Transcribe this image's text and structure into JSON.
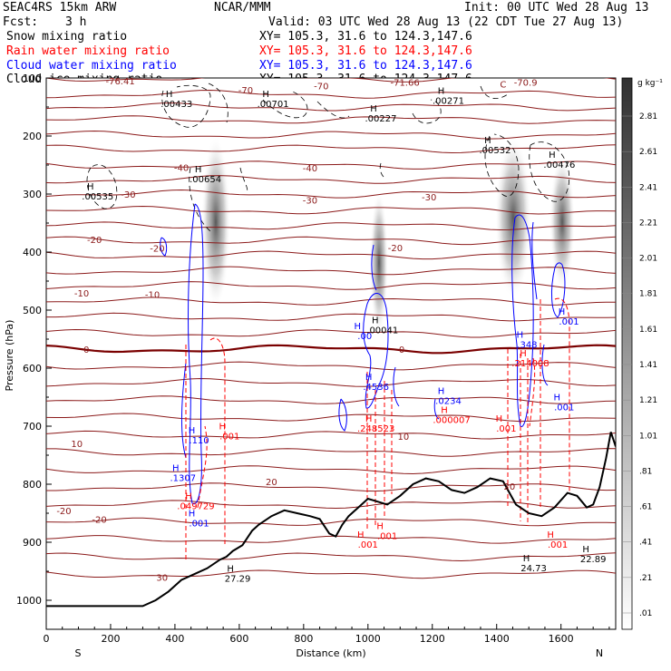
{
  "header": {
    "model": "SEAC4RS 15km ARW",
    "org": "NCAR/MMM",
    "init": "Init: 00 UTC Wed 28 Aug 13",
    "fcst_label": "Fcst:",
    "fcst_value": "3 h",
    "valid": "Valid: 03 UTC Wed 28 Aug 13 (22 CDT Tue 27 Aug 13)",
    "fields": [
      {
        "name": "Snow mixing ratio",
        "color": "#000000",
        "xy": "XY= 105.3, 31.6 to 124.3,147.6"
      },
      {
        "name": "Rain water mixing ratio",
        "color": "#ff0000",
        "xy": "XY= 105.3, 31.6 to 124.3,147.6"
      },
      {
        "name": "Cloud water mixing ratio",
        "color": "#0000ff",
        "xy": "XY= 105.3, 31.6 to 124.3,147.6"
      },
      {
        "name": "Cloud ice mixing ratio",
        "color": "#000000",
        "xy": "XY= 105.3, 31.6 to 124.3,147.6"
      }
    ]
  },
  "colors": {
    "temperature": "#8b1a1a",
    "freezing": "#7a0000",
    "rain": "#ff0000",
    "cloud_water": "#0000ff",
    "ice": "#000000",
    "terrain": "#000000"
  },
  "chart_data": {
    "type": "cross-section",
    "xlabel": "Distance (km)",
    "ylabel": "Pressure (hPa)",
    "x_left_label": "S",
    "x_right_label": "N",
    "xlim": [
      0,
      1770
    ],
    "ylim": [
      1050,
      100
    ],
    "x_ticks": [
      0,
      200,
      400,
      600,
      800,
      1000,
      1200,
      1400,
      1600
    ],
    "y_ticks": [
      100,
      200,
      300,
      400,
      500,
      600,
      700,
      800,
      900,
      1000
    ],
    "colorbar": {
      "unit": "g kg⁻¹",
      "labels": [
        "2.81",
        "2.61",
        "2.41",
        "2.21",
        "2.01",
        "1.81",
        "1.61",
        "1.41",
        "1.21",
        "1.01",
        ".81",
        ".61",
        ".41",
        ".21",
        ".01"
      ]
    },
    "temperature_labels": [
      {
        "text": "-76.41",
        "x": 230,
        "p": 105
      },
      {
        "text": "-70",
        "x": 620,
        "p": 120
      },
      {
        "text": "-70",
        "x": 855,
        "p": 113
      },
      {
        "text": "-71.66",
        "x": 1115,
        "p": 107
      },
      {
        "text": "C",
        "x": 1420,
        "p": 110
      },
      {
        "text": "-70.9",
        "x": 1490,
        "p": 107
      },
      {
        "text": "-40",
        "x": 420,
        "p": 254
      },
      {
        "text": "-40",
        "x": 820,
        "p": 255
      },
      {
        "text": "-30",
        "x": 255,
        "p": 300
      },
      {
        "text": "-30",
        "x": 820,
        "p": 310
      },
      {
        "text": "-30",
        "x": 1190,
        "p": 305
      },
      {
        "text": "-20",
        "x": 150,
        "p": 378
      },
      {
        "text": "-20",
        "x": 345,
        "p": 393
      },
      {
        "text": "-20",
        "x": 1085,
        "p": 392
      },
      {
        "text": "-10",
        "x": 110,
        "p": 470
      },
      {
        "text": "-10",
        "x": 330,
        "p": 473
      },
      {
        "text": "0",
        "x": 125,
        "p": 567
      },
      {
        "text": "0",
        "x": 1105,
        "p": 567
      },
      {
        "text": "10",
        "x": 95,
        "p": 730
      },
      {
        "text": "10",
        "x": 1110,
        "p": 717
      },
      {
        "text": "20",
        "x": 700,
        "p": 795
      },
      {
        "text": "20",
        "x": 1440,
        "p": 803
      },
      {
        "text": "-20",
        "x": 55,
        "p": 845
      },
      {
        "text": "-20",
        "x": 165,
        "p": 860
      },
      {
        "text": "30",
        "x": 360,
        "p": 960
      }
    ],
    "maxima": [
      {
        "text": ".00433",
        "x": 405,
        "p": 145,
        "color": "#000000"
      },
      {
        "text": ".00701",
        "x": 705,
        "p": 145,
        "color": "#000000"
      },
      {
        "text": ".00227",
        "x": 1040,
        "p": 170,
        "color": "#000000"
      },
      {
        "text": ".00271",
        "x": 1250,
        "p": 140,
        "color": "#000000"
      },
      {
        "text": ".00532",
        "x": 1395,
        "p": 225,
        "color": "#000000"
      },
      {
        "text": ".00476",
        "x": 1595,
        "p": 250,
        "color": "#000000"
      },
      {
        "text": ".00654",
        "x": 495,
        "p": 275,
        "color": "#000000"
      },
      {
        "text": ".00535",
        "x": 160,
        "p": 305,
        "color": "#000000"
      },
      {
        "text": ".00041",
        "x": 1045,
        "p": 535,
        "color": "#000000"
      },
      {
        "text": ".00",
        "x": 990,
        "p": 545,
        "color": "#0000ff"
      },
      {
        "text": ".348",
        "x": 1495,
        "p": 560,
        "color": "#0000ff"
      },
      {
        "text": ".214008",
        "x": 1505,
        "p": 592,
        "color": "#ff0000"
      },
      {
        "text": ".001",
        "x": 1625,
        "p": 520,
        "color": "#0000ff"
      },
      {
        "text": ".4536",
        "x": 1025,
        "p": 633,
        "color": "#0000ff"
      },
      {
        "text": ".0234",
        "x": 1250,
        "p": 657,
        "color": "#0000ff"
      },
      {
        "text": ".000007",
        "x": 1260,
        "p": 690,
        "color": "#ff0000"
      },
      {
        "text": ".248523",
        "x": 1025,
        "p": 705,
        "color": "#ff0000"
      },
      {
        "text": ".001",
        "x": 1610,
        "p": 668,
        "color": "#0000ff"
      },
      {
        "text": ".001",
        "x": 1430,
        "p": 705,
        "color": "#ff0000"
      },
      {
        "text": ".110",
        "x": 475,
        "p": 725,
        "color": "#0000ff"
      },
      {
        "text": ".001",
        "x": 570,
        "p": 718,
        "color": "#ff0000"
      },
      {
        "text": ".1307",
        "x": 425,
        "p": 790,
        "color": "#0000ff"
      },
      {
        "text": ".049729",
        "x": 465,
        "p": 838,
        "color": "#ff0000"
      },
      {
        "text": ".001",
        "x": 475,
        "p": 868,
        "color": "#0000ff"
      },
      {
        "text": ".001",
        "x": 1000,
        "p": 905,
        "color": "#ff0000"
      },
      {
        "text": ".001",
        "x": 1060,
        "p": 890,
        "color": "#ff0000"
      },
      {
        "text": ".001",
        "x": 1590,
        "p": 905,
        "color": "#ff0000"
      },
      {
        "text": "24.73",
        "x": 1515,
        "p": 945,
        "color": "#000000"
      },
      {
        "text": "22.89",
        "x": 1700,
        "p": 930,
        "color": "#000000"
      },
      {
        "text": "27.29",
        "x": 595,
        "p": 963,
        "color": "#000000"
      }
    ],
    "terrain_km_hpa": [
      [
        0,
        1010
      ],
      [
        300,
        1010
      ],
      [
        340,
        1000
      ],
      [
        380,
        985
      ],
      [
        420,
        965
      ],
      [
        460,
        955
      ],
      [
        500,
        945
      ],
      [
        540,
        930
      ],
      [
        560,
        925
      ],
      [
        580,
        915
      ],
      [
        610,
        905
      ],
      [
        640,
        880
      ],
      [
        660,
        870
      ],
      [
        700,
        855
      ],
      [
        740,
        845
      ],
      [
        780,
        850
      ],
      [
        820,
        855
      ],
      [
        850,
        860
      ],
      [
        880,
        885
      ],
      [
        900,
        890
      ],
      [
        920,
        870
      ],
      [
        940,
        855
      ],
      [
        970,
        840
      ],
      [
        1000,
        825
      ],
      [
        1030,
        830
      ],
      [
        1060,
        835
      ],
      [
        1100,
        820
      ],
      [
        1140,
        800
      ],
      [
        1180,
        790
      ],
      [
        1220,
        795
      ],
      [
        1260,
        810
      ],
      [
        1300,
        815
      ],
      [
        1340,
        805
      ],
      [
        1380,
        790
      ],
      [
        1420,
        795
      ],
      [
        1460,
        835
      ],
      [
        1500,
        850
      ],
      [
        1540,
        855
      ],
      [
        1580,
        840
      ],
      [
        1620,
        815
      ],
      [
        1650,
        820
      ],
      [
        1680,
        840
      ],
      [
        1700,
        835
      ],
      [
        1720,
        805
      ],
      [
        1740,
        755
      ],
      [
        1755,
        710
      ],
      [
        1770,
        735
      ]
    ]
  }
}
